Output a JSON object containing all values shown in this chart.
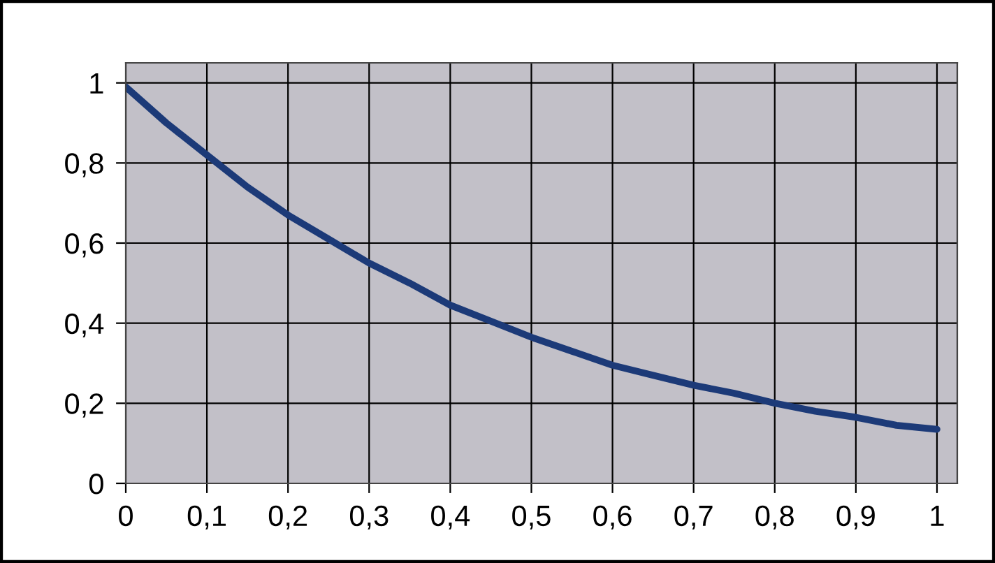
{
  "chart_data": {
    "type": "line",
    "x": [
      0,
      0.05,
      0.1,
      0.15,
      0.2,
      0.25,
      0.3,
      0.35,
      0.4,
      0.45,
      0.5,
      0.55,
      0.6,
      0.65,
      0.7,
      0.75,
      0.8,
      0.85,
      0.9,
      0.95,
      1
    ],
    "series": [
      {
        "color": "#1c3a78",
        "values": [
          0.99,
          0.9,
          0.82,
          0.74,
          0.67,
          0.61,
          0.55,
          0.5,
          0.445,
          0.405,
          0.365,
          0.33,
          0.295,
          0.27,
          0.245,
          0.225,
          0.2,
          0.18,
          0.165,
          0.145,
          0.135
        ]
      }
    ],
    "xlim": [
      0,
      1.025
    ],
    "ylim": [
      0,
      1.05
    ],
    "xticks": [
      0,
      {
        "value": 0.1,
        "label": "0,1"
      },
      {
        "value": 0.2,
        "label": "0,2"
      },
      {
        "value": 0.3,
        "label": "0,3"
      },
      {
        "value": 0.4,
        "label": "0,4"
      },
      {
        "value": 0.5,
        "label": "0,5"
      },
      {
        "value": 0.6,
        "label": "0,6"
      },
      {
        "value": 0.7,
        "label": "0,7"
      },
      {
        "value": 0.8,
        "label": "0,8"
      },
      {
        "value": 0.9,
        "label": "0,9"
      },
      1
    ],
    "yticks": [
      0,
      {
        "value": 0.2,
        "label": "0,2"
      },
      {
        "value": 0.4,
        "label": "0,4"
      },
      {
        "value": 0.6,
        "label": "0,6"
      },
      {
        "value": 0.8,
        "label": "0,8"
      },
      1
    ],
    "grid": true,
    "marker": "none",
    "line_style": "solid",
    "legend": false
  }
}
